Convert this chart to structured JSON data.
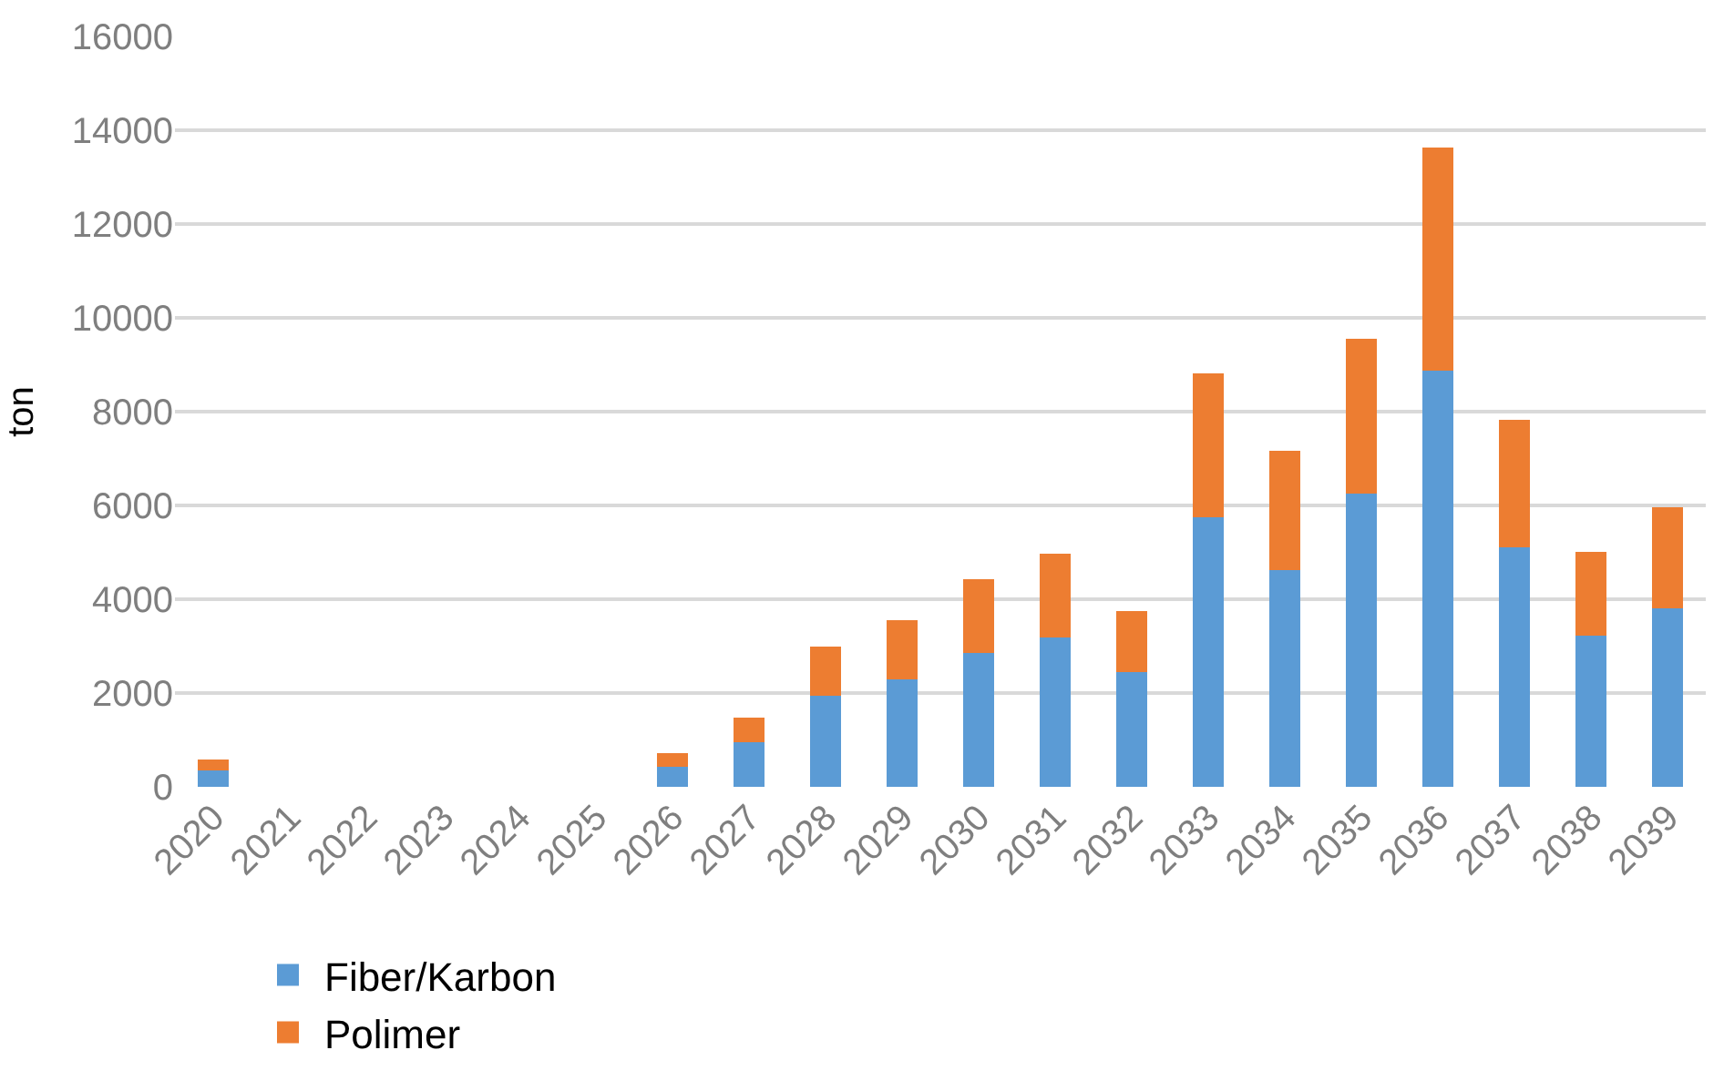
{
  "chart_data": {
    "type": "bar",
    "stacked": true,
    "ylabel": "ton",
    "categories": [
      "2020",
      "2021",
      "2022",
      "2023",
      "2024",
      "2025",
      "2026",
      "2027",
      "2028",
      "2029",
      "2030",
      "2031",
      "2032",
      "2033",
      "2034",
      "2035",
      "2036",
      "2037",
      "2038",
      "2039"
    ],
    "series": [
      {
        "name": "Fiber/Karbon",
        "color": "#5b9bd5",
        "values": [
          350,
          null,
          null,
          null,
          null,
          null,
          430,
          950,
          1950,
          2300,
          2860,
          3190,
          2450,
          5750,
          4620,
          6250,
          8870,
          5100,
          3230,
          3800
        ]
      },
      {
        "name": "Polimer",
        "color": "#ed7d31",
        "values": [
          235,
          null,
          null,
          null,
          null,
          null,
          285,
          520,
          1040,
          1250,
          1560,
          1780,
          1300,
          3070,
          2540,
          3310,
          4760,
          2730,
          1780,
          2160
        ]
      }
    ],
    "ylim": [
      0,
      16000
    ],
    "yticks": [
      0,
      2000,
      4000,
      6000,
      8000,
      10000,
      12000,
      14000,
      16000
    ],
    "grid": "y",
    "legend": "bottom"
  }
}
